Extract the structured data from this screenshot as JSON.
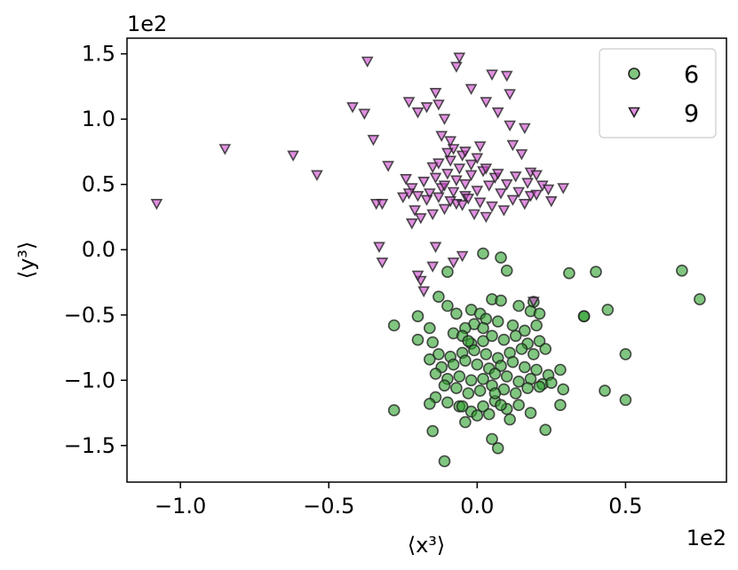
{
  "chart_data": {
    "type": "scatter",
    "xlabel": "⟨x³⟩",
    "ylabel": "⟨y³⟩",
    "x_scale_label": "1e2",
    "y_scale_label": "1e2",
    "xlim": [
      -1.18,
      0.84
    ],
    "ylim": [
      -1.78,
      1.62
    ],
    "x_ticks": [
      -1.0,
      -0.5,
      0.0,
      0.5
    ],
    "x_tick_labels": [
      "−1.0",
      "−0.5",
      "0.0",
      "0.5"
    ],
    "y_ticks": [
      -1.5,
      -1.0,
      -0.5,
      0.0,
      0.5,
      1.0,
      1.5
    ],
    "y_tick_labels": [
      "−1.5",
      "−1.0",
      "−0.5",
      "0.0",
      "0.5",
      "1.0",
      "1.5"
    ],
    "grid": false,
    "legend_position": "top-right",
    "series": [
      {
        "name": "6",
        "marker": "circle",
        "color": "#2ca02c",
        "points": [
          [
            0.02,
            -0.03
          ],
          [
            0.08,
            -0.06
          ],
          [
            0.1,
            -0.16
          ],
          [
            -0.1,
            -0.17
          ],
          [
            0.31,
            -0.18
          ],
          [
            0.4,
            -0.17
          ],
          [
            0.69,
            -0.16
          ],
          [
            0.75,
            -0.38
          ],
          [
            0.36,
            -0.51
          ],
          [
            0.44,
            -0.46
          ],
          [
            0.19,
            -0.4
          ],
          [
            -0.2,
            -0.51
          ],
          [
            -0.16,
            -0.6
          ],
          [
            -0.28,
            -0.58
          ],
          [
            -0.15,
            -0.71
          ],
          [
            -0.2,
            -0.69
          ],
          [
            -0.13,
            -0.36
          ],
          [
            -0.1,
            -0.43
          ],
          [
            -0.07,
            -0.49
          ],
          [
            -0.02,
            -0.46
          ],
          [
            0.01,
            -0.49
          ],
          [
            0.05,
            -0.38
          ],
          [
            0.08,
            -0.39
          ],
          [
            0.14,
            -0.43
          ],
          [
            0.18,
            -0.47
          ],
          [
            0.21,
            -0.49
          ],
          [
            0.2,
            -0.58
          ],
          [
            0.16,
            -0.62
          ],
          [
            0.12,
            -0.58
          ],
          [
            0.07,
            -0.55
          ],
          [
            0.03,
            -0.53
          ],
          [
            -0.01,
            -0.57
          ],
          [
            -0.04,
            -0.6
          ],
          [
            -0.08,
            -0.64
          ],
          [
            -0.05,
            -0.66
          ],
          [
            -0.02,
            -0.72
          ],
          [
            0.02,
            -0.7
          ],
          [
            0.05,
            -0.66
          ],
          [
            0.09,
            -0.69
          ],
          [
            0.13,
            -0.66
          ],
          [
            0.17,
            -0.72
          ],
          [
            0.21,
            -0.7
          ],
          [
            0.23,
            -0.76
          ],
          [
            0.19,
            -0.8
          ],
          [
            0.15,
            -0.76
          ],
          [
            0.11,
            -0.79
          ],
          [
            0.07,
            -0.83
          ],
          [
            0.03,
            -0.8
          ],
          [
            -0.01,
            -0.77
          ],
          [
            -0.05,
            -0.79
          ],
          [
            -0.09,
            -0.82
          ],
          [
            -0.13,
            -0.8
          ],
          [
            -0.16,
            -0.84
          ],
          [
            -0.12,
            -0.9
          ],
          [
            -0.08,
            -0.88
          ],
          [
            -0.04,
            -0.85
          ],
          [
            0.0,
            -0.88
          ],
          [
            0.04,
            -0.91
          ],
          [
            0.08,
            -0.89
          ],
          [
            0.12,
            -0.86
          ],
          [
            0.16,
            -0.9
          ],
          [
            0.2,
            -0.92
          ],
          [
            0.24,
            -0.96
          ],
          [
            0.28,
            -0.92
          ],
          [
            0.29,
            -1.07
          ],
          [
            0.22,
            -1.03
          ],
          [
            0.18,
            -0.99
          ],
          [
            0.14,
            -1.01
          ],
          [
            0.1,
            -0.97
          ],
          [
            0.06,
            -0.95
          ],
          [
            0.02,
            -0.99
          ],
          [
            -0.02,
            -1.0
          ],
          [
            -0.06,
            -0.97
          ],
          [
            -0.1,
            -0.99
          ],
          [
            -0.14,
            -0.95
          ],
          [
            -0.11,
            -1.04
          ],
          [
            -0.07,
            -1.06
          ],
          [
            -0.03,
            -1.1
          ],
          [
            0.01,
            -1.08
          ],
          [
            0.05,
            -1.04
          ],
          [
            0.09,
            -1.07
          ],
          [
            0.13,
            -1.1
          ],
          [
            0.17,
            -1.06
          ],
          [
            0.21,
            -1.05
          ],
          [
            0.25,
            -1.02
          ],
          [
            0.28,
            -1.19
          ],
          [
            0.23,
            -1.38
          ],
          [
            0.18,
            -1.25
          ],
          [
            0.14,
            -1.19
          ],
          [
            0.1,
            -1.22
          ],
          [
            0.06,
            -1.16
          ],
          [
            0.02,
            -1.2
          ],
          [
            -0.02,
            -1.24
          ],
          [
            -0.06,
            -1.2
          ],
          [
            -0.1,
            -1.17
          ],
          [
            -0.14,
            -1.13
          ],
          [
            -0.16,
            -1.18
          ],
          [
            -0.15,
            -1.39
          ],
          [
            -0.04,
            -1.32
          ],
          [
            0.0,
            -1.27
          ],
          [
            0.04,
            -1.26
          ],
          [
            0.08,
            -1.19
          ],
          [
            0.11,
            -1.3
          ],
          [
            0.05,
            -1.45
          ],
          [
            0.07,
            -1.52
          ],
          [
            -0.11,
            -1.62
          ],
          [
            -0.28,
            -1.23
          ],
          [
            0.43,
            -1.08
          ],
          [
            0.5,
            -1.15
          ],
          [
            0.5,
            -0.8
          ],
          [
            0.36,
            -0.51
          ],
          [
            -0.05,
            -1.2
          ],
          [
            0.06,
            -1.1
          ],
          [
            -0.03,
            -0.7
          ],
          [
            0.02,
            -0.6
          ]
        ]
      },
      {
        "name": "9",
        "marker": "triangle-down",
        "color": "#cc44cc",
        "points": [
          [
            -1.08,
            0.35
          ],
          [
            -0.85,
            0.77
          ],
          [
            -0.62,
            0.72
          ],
          [
            -0.54,
            0.57
          ],
          [
            -0.42,
            1.09
          ],
          [
            -0.37,
            1.44
          ],
          [
            -0.38,
            1.04
          ],
          [
            -0.35,
            0.84
          ],
          [
            -0.34,
            0.35
          ],
          [
            -0.32,
            0.35
          ],
          [
            -0.33,
            0.02
          ],
          [
            -0.32,
            -0.1
          ],
          [
            -0.3,
            0.64
          ],
          [
            -0.24,
            0.54
          ],
          [
            -0.25,
            0.4
          ],
          [
            -0.23,
            1.13
          ],
          [
            -0.2,
            1.05
          ],
          [
            -0.17,
            1.09
          ],
          [
            -0.14,
            1.2
          ],
          [
            -0.13,
            1.11
          ],
          [
            -0.11,
            1.0
          ],
          [
            -0.12,
            0.87
          ],
          [
            -0.09,
            0.83
          ],
          [
            -0.08,
            0.77
          ],
          [
            -0.05,
            0.72
          ],
          [
            -0.07,
            1.4
          ],
          [
            -0.06,
            1.47
          ],
          [
            -0.02,
            1.23
          ],
          [
            0.03,
            1.13
          ],
          [
            0.05,
            1.34
          ],
          [
            0.1,
            1.33
          ],
          [
            0.11,
            1.19
          ],
          [
            0.07,
            1.05
          ],
          [
            0.11,
            0.95
          ],
          [
            0.16,
            0.93
          ],
          [
            0.12,
            0.8
          ],
          [
            0.15,
            0.73
          ],
          [
            0.18,
            0.59
          ],
          [
            0.2,
            0.57
          ],
          [
            0.17,
            0.51
          ],
          [
            0.22,
            0.49
          ],
          [
            0.24,
            0.46
          ],
          [
            0.29,
            0.47
          ],
          [
            0.25,
            0.37
          ],
          [
            0.18,
            0.41
          ],
          [
            0.14,
            0.44
          ],
          [
            0.1,
            0.5
          ],
          [
            0.06,
            0.55
          ],
          [
            0.02,
            0.6
          ],
          [
            -0.02,
            0.65
          ],
          [
            -0.06,
            0.62
          ],
          [
            -0.1,
            0.58
          ],
          [
            -0.14,
            0.55
          ],
          [
            -0.18,
            0.52
          ],
          [
            -0.22,
            0.47
          ],
          [
            -0.2,
            0.41
          ],
          [
            -0.16,
            0.43
          ],
          [
            -0.12,
            0.47
          ],
          [
            -0.08,
            0.44
          ],
          [
            -0.04,
            0.41
          ],
          [
            0.0,
            0.45
          ],
          [
            0.04,
            0.49
          ],
          [
            0.08,
            0.43
          ],
          [
            0.12,
            0.38
          ],
          [
            0.16,
            0.35
          ],
          [
            0.09,
            0.3
          ],
          [
            0.05,
            0.33
          ],
          [
            0.01,
            0.36
          ],
          [
            -0.03,
            0.39
          ],
          [
            -0.07,
            0.35
          ],
          [
            -0.11,
            0.31
          ],
          [
            -0.15,
            0.27
          ],
          [
            -0.19,
            0.24
          ],
          [
            -0.21,
            0.3
          ],
          [
            -0.22,
            0.2
          ],
          [
            -0.17,
            0.38
          ],
          [
            -0.13,
            0.4
          ],
          [
            -0.09,
            0.37
          ],
          [
            -0.05,
            0.34
          ],
          [
            -0.01,
            0.27
          ],
          [
            0.03,
            0.25
          ],
          [
            -0.04,
            0.5
          ],
          [
            -0.02,
            0.57
          ],
          [
            -0.07,
            0.53
          ],
          [
            -0.11,
            0.49
          ],
          [
            -0.15,
            0.63
          ],
          [
            -0.09,
            0.68
          ],
          [
            -0.04,
            0.75
          ],
          [
            0.0,
            0.7
          ],
          [
            0.03,
            0.62
          ],
          [
            0.07,
            0.58
          ],
          [
            0.13,
            0.56
          ],
          [
            0.2,
            0.42
          ],
          [
            -0.14,
            0.02
          ],
          [
            -0.15,
            -0.13
          ],
          [
            -0.08,
            -0.1
          ],
          [
            -0.05,
            -0.05
          ],
          [
            -0.19,
            -0.24
          ],
          [
            -0.18,
            -0.32
          ],
          [
            -0.2,
            -0.2
          ],
          [
            0.19,
            -0.4
          ],
          [
            -0.13,
            0.66
          ],
          [
            -0.1,
            0.74
          ],
          [
            0.01,
            0.79
          ],
          [
            -0.23,
            0.43
          ]
        ]
      }
    ]
  }
}
